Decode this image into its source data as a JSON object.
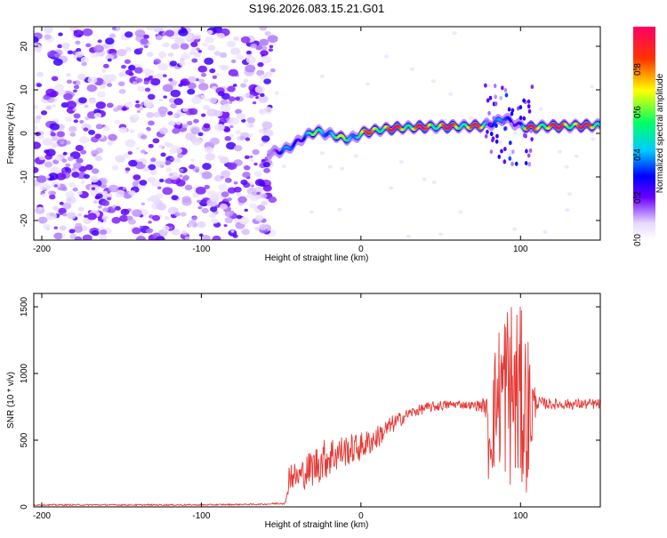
{
  "title": "S196.2026.083.15.21.G01",
  "chart_data": [
    {
      "type": "heatmap",
      "xlabel": "Height of straight line (km)",
      "ylabel": "Frequency (Hz)",
      "xlim": [
        -205,
        150
      ],
      "ylim": [
        -24.5,
        24.5
      ],
      "xticks": [
        "-200",
        "-100",
        "0",
        "100"
      ],
      "xtick_values": [
        -200,
        -100,
        0,
        100
      ],
      "yticks": [
        "-20",
        "-10",
        "0",
        "10",
        "20"
      ],
      "ytick_values": [
        -20,
        -10,
        0,
        10,
        20
      ],
      "colorbar": {
        "label": "Normalized spectral amplitude",
        "ticks": [
          "0.0",
          "0.2",
          "0.4",
          "0.6",
          "0.8"
        ],
        "tick_values": [
          0.0,
          0.2,
          0.4,
          0.6,
          0.8
        ],
        "range": [
          0,
          1
        ]
      },
      "noise_region_km": [
        -205,
        -58
      ],
      "ridge": {
        "x": [
          -58,
          -52,
          -46,
          -40,
          -34,
          -28,
          -22,
          -16,
          -10,
          -4,
          0,
          6,
          15,
          25,
          40,
          60,
          75,
          82,
          90,
          95,
          100,
          105,
          115,
          130,
          150
        ],
        "freq": [
          -4.5,
          -4.2,
          -3.5,
          -2.0,
          -0.5,
          0.5,
          0.0,
          -0.5,
          -1.2,
          -1.0,
          0.0,
          0.5,
          1.0,
          1.3,
          1.5,
          1.6,
          1.7,
          2.2,
          3.5,
          2.5,
          1.8,
          1.3,
          1.6,
          1.7,
          1.8
        ],
        "amp": [
          0.2,
          0.3,
          0.35,
          0.4,
          0.45,
          0.55,
          0.6,
          0.55,
          0.6,
          0.65,
          0.7,
          0.8,
          0.95,
          0.9,
          0.9,
          0.9,
          0.8,
          0.5,
          0.3,
          0.35,
          0.4,
          0.85,
          0.95,
          0.95,
          0.9
        ]
      }
    },
    {
      "type": "line",
      "xlabel": "Height of straight line (km)",
      "ylabel": "SNR (10 * v/v)",
      "xlim": [
        -205,
        150
      ],
      "ylim": [
        0,
        1600
      ],
      "xticks": [
        "-200",
        "-100",
        "0",
        "100"
      ],
      "xtick_values": [
        -200,
        -100,
        0,
        100
      ],
      "yticks": [
        "0",
        "500",
        "1000",
        "1500"
      ],
      "ytick_values": [
        0,
        500,
        1000,
        1500
      ],
      "series": [
        {
          "name": "SNR",
          "color": "#e53935",
          "x": [
            -205,
            -150,
            -100,
            -60,
            -47,
            -45,
            -40,
            -30,
            -20,
            -10,
            0,
            10,
            20,
            30,
            40,
            50,
            60,
            70,
            78,
            80,
            85,
            90,
            95,
            100,
            105,
            110,
            120,
            130,
            140,
            150
          ],
          "y": [
            15,
            15,
            15,
            20,
            30,
            250,
            220,
            300,
            380,
            420,
            450,
            520,
            620,
            700,
            740,
            760,
            770,
            760,
            760,
            500,
            800,
            900,
            850,
            800,
            700,
            780,
            770,
            770,
            770,
            770
          ],
          "spread": [
            5,
            5,
            5,
            5,
            10,
            120,
            100,
            150,
            160,
            120,
            110,
            90,
            70,
            40,
            40,
            40,
            30,
            30,
            60,
            350,
            500,
            700,
            750,
            700,
            600,
            50,
            40,
            40,
            40,
            40
          ]
        }
      ]
    }
  ]
}
